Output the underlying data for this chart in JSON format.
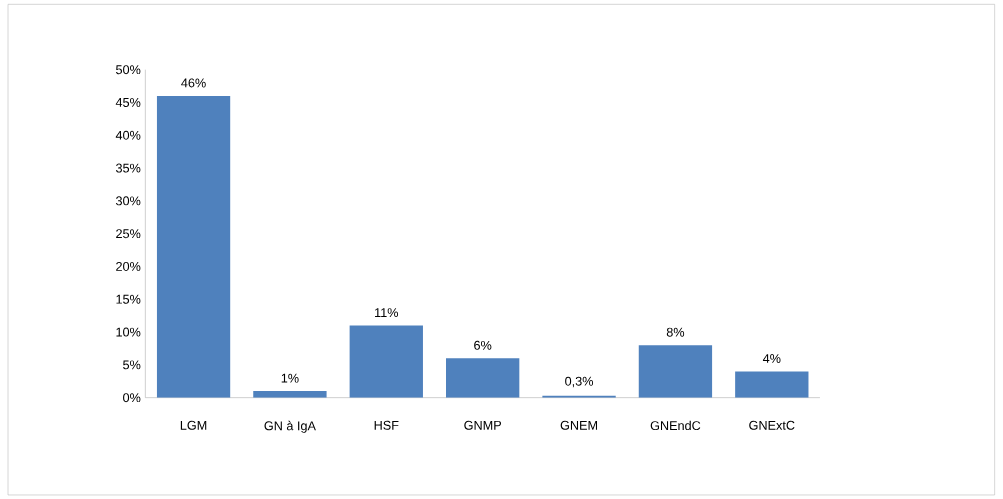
{
  "chart_data": {
    "type": "bar",
    "categories": [
      "LGM",
      "GN à IgA",
      "HSF",
      "GNMP",
      "GNEM",
      "GNEndC",
      "GNExtC"
    ],
    "values": [
      46,
      1,
      11,
      6,
      0.3,
      8,
      4
    ],
    "value_labels": [
      "46%",
      "1%",
      "11%",
      "6%",
      "0,3%",
      "8%",
      "4%"
    ],
    "color": "#4f81bd",
    "ylim": [
      0,
      50
    ],
    "yticks": [
      {
        "value": 0,
        "label": "0%"
      },
      {
        "value": 5,
        "label": "5%"
      },
      {
        "value": 10,
        "label": "10%"
      },
      {
        "value": 15,
        "label": "15%"
      },
      {
        "value": 20,
        "label": "20%"
      },
      {
        "value": 25,
        "label": "25%"
      },
      {
        "value": 30,
        "label": "30%"
      },
      {
        "value": 35,
        "label": "35%"
      },
      {
        "value": 40,
        "label": "40%"
      },
      {
        "value": 45,
        "label": "45%"
      },
      {
        "value": 50,
        "label": "50%"
      }
    ],
    "grid": false
  }
}
